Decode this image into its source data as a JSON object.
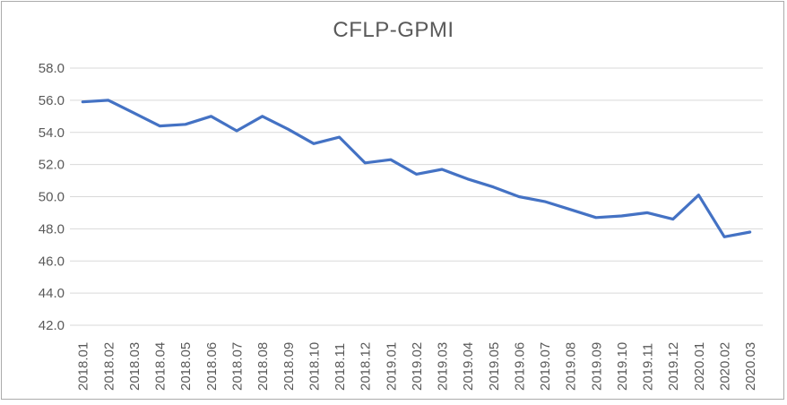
{
  "chart_data": {
    "type": "line",
    "title": "CFLP-GPMI",
    "categories": [
      "2018.01",
      "2018.02",
      "2018.03",
      "2018.04",
      "2018.05",
      "2018.06",
      "2018.07",
      "2018.08",
      "2018.09",
      "2018.10",
      "2018.11",
      "2018.12",
      "2019.01",
      "2019.02",
      "2019.03",
      "2019.04",
      "2019.05",
      "2019.06",
      "2019.07",
      "2019.08",
      "2019.09",
      "2019.10",
      "2019.11",
      "2019.12",
      "2020.01",
      "2020.02",
      "2020.03"
    ],
    "series": [
      {
        "name": "CFLP-GPMI",
        "values": [
          55.9,
          56.0,
          55.2,
          54.4,
          54.5,
          55.0,
          54.1,
          55.0,
          54.2,
          53.3,
          53.7,
          52.1,
          52.3,
          51.4,
          51.7,
          51.1,
          50.6,
          50.0,
          49.7,
          49.2,
          48.7,
          48.8,
          49.0,
          48.6,
          50.1,
          47.5,
          47.8
        ]
      }
    ],
    "xlabel": "",
    "ylabel": "",
    "ylim": [
      42.0,
      58.0
    ],
    "ytick_step": 2.0,
    "ytick_labels": [
      "58.0",
      "56.0",
      "54.0",
      "52.0",
      "50.0",
      "48.0",
      "46.0",
      "44.0",
      "42.0"
    ],
    "grid": "horizontal",
    "legend_position": "none",
    "x_tick_rotation_degrees": -90
  },
  "colors": {
    "series_line": "#4472C4",
    "gridline": "#D9D9D9",
    "tick_text": "#595959",
    "title_text": "#595959",
    "frame_border": "#ABABAB",
    "background": "#FFFFFF"
  }
}
